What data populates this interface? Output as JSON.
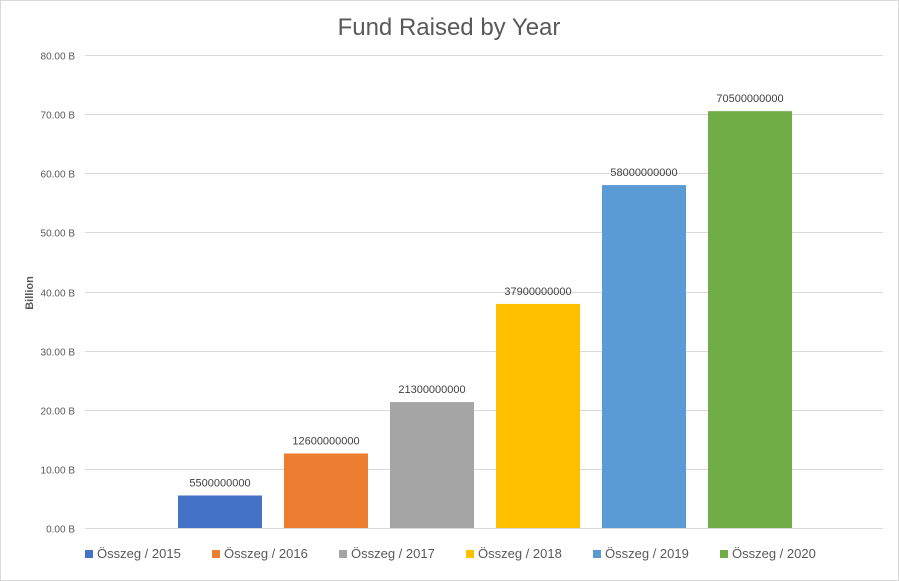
{
  "chart_data": {
    "type": "bar",
    "title": "Fund Raised by Year",
    "ylabel": "Billion",
    "xlabel": "",
    "ylim": [
      0,
      80000000000
    ],
    "yticks": [
      0,
      10000000000,
      20000000000,
      30000000000,
      40000000000,
      50000000000,
      60000000000,
      70000000000,
      80000000000
    ],
    "ytick_labels": [
      "0.00 B",
      "10.00 B",
      "20.00 B",
      "30.00 B",
      "40.00 B",
      "50.00 B",
      "60.00 B",
      "70.00 B",
      "80.00 B"
    ],
    "grid": true,
    "legend_position": "bottom",
    "series": [
      {
        "name": "Összeg / 2015",
        "value": 5500000000,
        "label": "5500000000",
        "color": "#4472C4"
      },
      {
        "name": "Összeg / 2016",
        "value": 12600000000,
        "label": "12600000000",
        "color": "#ED7D31"
      },
      {
        "name": "Összeg / 2017",
        "value": 21300000000,
        "label": "21300000000",
        "color": "#A5A5A5"
      },
      {
        "name": "Összeg / 2018",
        "value": 37900000000,
        "label": "37900000000",
        "color": "#FFC000"
      },
      {
        "name": "Összeg / 2019",
        "value": 58000000000,
        "label": "58000000000",
        "color": "#5B9BD5"
      },
      {
        "name": "Összeg / 2020",
        "value": 70500000000,
        "label": "70500000000",
        "color": "#70AD47"
      }
    ]
  }
}
